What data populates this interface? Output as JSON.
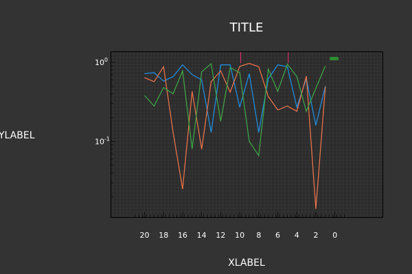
{
  "chart_data": {
    "type": "line",
    "title": "TITLE",
    "xlabel": "XLABEL",
    "ylabel": "YLABEL",
    "xlim": [
      23.5,
      -5
    ],
    "ylim": [
      0.011,
      1.35
    ],
    "yscale": "log",
    "xticks": [
      20,
      18,
      16,
      14,
      12,
      10,
      8,
      6,
      4,
      2,
      0
    ],
    "yticks": [
      {
        "value": 1.0,
        "label": "10",
        "exp": "0"
      },
      {
        "value": 0.1,
        "label": "10",
        "exp": "-1"
      }
    ],
    "grid": true,
    "x": [
      20,
      19,
      18,
      17,
      16,
      15,
      14,
      13,
      12,
      11,
      10,
      9,
      8,
      7,
      6,
      5,
      4,
      3,
      2,
      1
    ],
    "series": [
      {
        "color": "#1f8ee0",
        "values": [
          0.72,
          0.74,
          0.58,
          0.66,
          0.93,
          0.7,
          0.6,
          0.13,
          0.93,
          0.93,
          0.27,
          0.72,
          0.13,
          0.62,
          0.93,
          0.88,
          0.27,
          0.62,
          0.16,
          0.5
        ]
      },
      {
        "color": "#e8724a",
        "values": [
          0.64,
          0.57,
          0.88,
          0.13,
          0.025,
          0.43,
          0.08,
          0.57,
          0.78,
          0.42,
          0.89,
          0.97,
          0.88,
          0.37,
          0.25,
          0.28,
          0.24,
          0.67,
          0.014,
          0.49
        ]
      },
      {
        "color": "#3ea447",
        "values": [
          0.38,
          0.28,
          0.48,
          0.4,
          0.78,
          0.08,
          0.76,
          0.96,
          0.18,
          0.86,
          0.74,
          0.1,
          0.066,
          0.82,
          0.43,
          0.95,
          0.66,
          0.24,
          0.47,
          0.9
        ]
      }
    ],
    "vmarkers": [
      {
        "x": 9.9,
        "color": "#d6306a"
      },
      {
        "x": 4.9,
        "color": "#d6306a"
      }
    ],
    "legend": {
      "placement": "top-right",
      "swatch_color": "#2e8b2e"
    }
  }
}
